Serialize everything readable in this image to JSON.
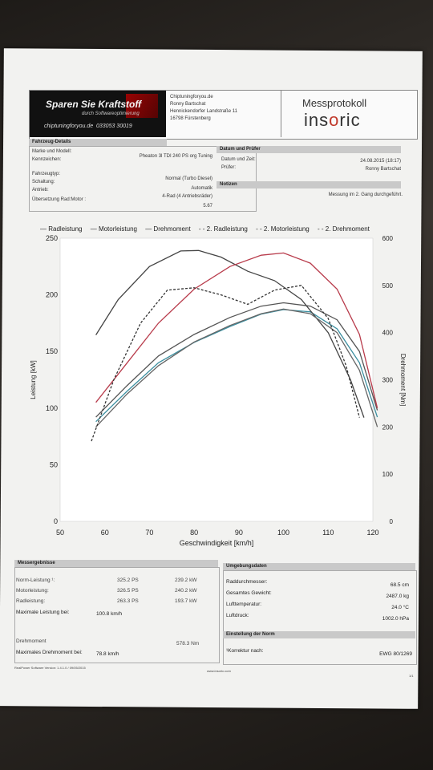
{
  "header": {
    "logo_line1": "Sparen Sie Kraftstoff",
    "logo_line2": "durch Softwareoptimierung",
    "logo_line3": "chiptuningforyou.de",
    "logo_phone": "033053 30019",
    "address": [
      "Chiptuningforyou.de",
      "Ronny Bartschat",
      "Hennickendorfer Landstraße 11",
      "16798 Fürstenberg"
    ],
    "title": "Messprotokoll",
    "brand_pre": "ins",
    "brand_o": "o",
    "brand_post": "ric"
  },
  "vehicle": {
    "heading": "Fahrzeug-Details",
    "labels": [
      "Marke und Modell:",
      "Kennzeichen:",
      "Fahrzeugtyp:",
      "Schaltung:",
      "Antrieb:",
      "Übersetzung Rad:Motor :"
    ],
    "values": [
      "Pheaton 3l TDI 240 PS org Tuning",
      "",
      "Normal (Turbo Diesel)",
      "Automatik",
      "4-Rad (4 Antriebsräder)",
      "5.67"
    ]
  },
  "date_section": {
    "heading": "Datum und Prüfer",
    "labels": [
      "Datum und Zeit:",
      "Prüfer:"
    ],
    "values": [
      "24.08.2015 (18:17)",
      "Ronny Bartschat"
    ]
  },
  "notes": {
    "heading": "Notizen",
    "text": "Messung im 2. Gang durchgeführt."
  },
  "legend": [
    "— Radleistung",
    "— Motorleistung",
    "— Drehmoment",
    "- - 2. Radleistung",
    "- - 2. Motorleistung",
    "- - 2. Drehmoment"
  ],
  "chart_data": {
    "type": "line",
    "xlabel": "Geschwindigkeit [km/h]",
    "ylabel": "Leistung [kW]",
    "y2label": "Drehmoment [Nm]",
    "xlim": [
      50,
      120
    ],
    "ylim": [
      0,
      250
    ],
    "y2lim": [
      0,
      600
    ],
    "xticks": [
      50,
      60,
      70,
      80,
      90,
      100,
      110,
      120
    ],
    "yticks": [
      0,
      50,
      100,
      150,
      200,
      250
    ],
    "y2ticks": [
      0,
      100,
      200,
      300,
      400,
      500,
      600
    ],
    "series": [
      {
        "name": "Radleistung",
        "axis": "left",
        "style": "solid",
        "color": "#3c8fa0",
        "x": [
          58,
          65,
          72,
          80,
          88,
          95,
          100,
          106,
          112,
          117,
          121
        ],
        "y": [
          88,
          115,
          140,
          158,
          172,
          183,
          187,
          185,
          170,
          140,
          92
        ]
      },
      {
        "name": "Motorleistung",
        "axis": "left",
        "style": "solid",
        "color": "#555555",
        "x": [
          58,
          65,
          72,
          80,
          88,
          95,
          100,
          106,
          112,
          117,
          121
        ],
        "y": [
          92,
          120,
          146,
          165,
          180,
          190,
          193,
          190,
          178,
          150,
          98
        ]
      },
      {
        "name": "Drehmoment",
        "axis": "right",
        "style": "solid",
        "color": "#444444",
        "x": [
          58,
          63,
          70,
          77,
          81,
          86,
          92,
          98,
          104,
          110,
          115,
          118
        ],
        "y": [
          395,
          470,
          540,
          573,
          574,
          560,
          530,
          510,
          470,
          400,
          300,
          220
        ]
      },
      {
        "name": "2. Radleistung",
        "axis": "left",
        "style": "solid",
        "color": "#b83b4b",
        "x": [
          58,
          65,
          72,
          80,
          88,
          95,
          100,
          106,
          112,
          117,
          121
        ],
        "y": [
          105,
          140,
          175,
          205,
          225,
          235,
          237,
          228,
          205,
          165,
          100
        ]
      },
      {
        "name": "2. Motorleistung",
        "axis": "right",
        "style": "solid",
        "color": "#666666",
        "x": [
          58,
          65,
          72,
          80,
          88,
          95,
          100,
          106,
          112,
          117,
          121
        ],
        "y": [
          200,
          270,
          330,
          380,
          415,
          440,
          450,
          440,
          400,
          320,
          200
        ]
      },
      {
        "name": "2. Drehmoment",
        "axis": "right",
        "style": "dashed",
        "color": "#333333",
        "x": [
          57,
          62,
          68,
          74,
          80,
          86,
          92,
          98,
          104,
          110,
          114,
          117
        ],
        "y": [
          170,
          300,
          420,
          490,
          495,
          480,
          460,
          490,
          500,
          430,
          330,
          220
        ]
      }
    ]
  },
  "results": {
    "heading": "Messergebnisse",
    "rows": [
      {
        "label": "Norm-Leistung ¹:",
        "ps": "325.2 PS",
        "kw": "239.2 kW"
      },
      {
        "label": "Motorleistung:",
        "ps": "326.5 PS",
        "kw": "240.2 kW"
      },
      {
        "label": "Radleistung:",
        "ps": "263.3 PS",
        "kw": "193.7 kW"
      }
    ],
    "max_label": "Maximale Leistung bei:",
    "max_value": "100.8 km/h",
    "torque_label": "Drehmoment",
    "torque_value": "578.3 Nm",
    "max_torque_label": "Maximales Drehmoment bei:",
    "max_torque_value": "78.8 km/h"
  },
  "environment": {
    "heading": "Umgebungsdaten",
    "rows": [
      {
        "label": "Raddurchmesser:",
        "value": "68.5 cm"
      },
      {
        "label": "Gesamtes Gewicht:",
        "value": "2487.0 kg"
      },
      {
        "label": "Lufttemperatur:",
        "value": "24.0 °C"
      },
      {
        "label": "Luftdruck:",
        "value": "1002.0 hPa"
      }
    ],
    "norm_heading": "Einstellung der Norm",
    "norm_label": "¹Korrektur nach:",
    "norm_value": "EWG 80/1269"
  },
  "footer": {
    "software": "RealPower Software Version: 1.4.1.0 / 09/05/2015",
    "url": "www.insoric.com",
    "page": "1/1"
  }
}
